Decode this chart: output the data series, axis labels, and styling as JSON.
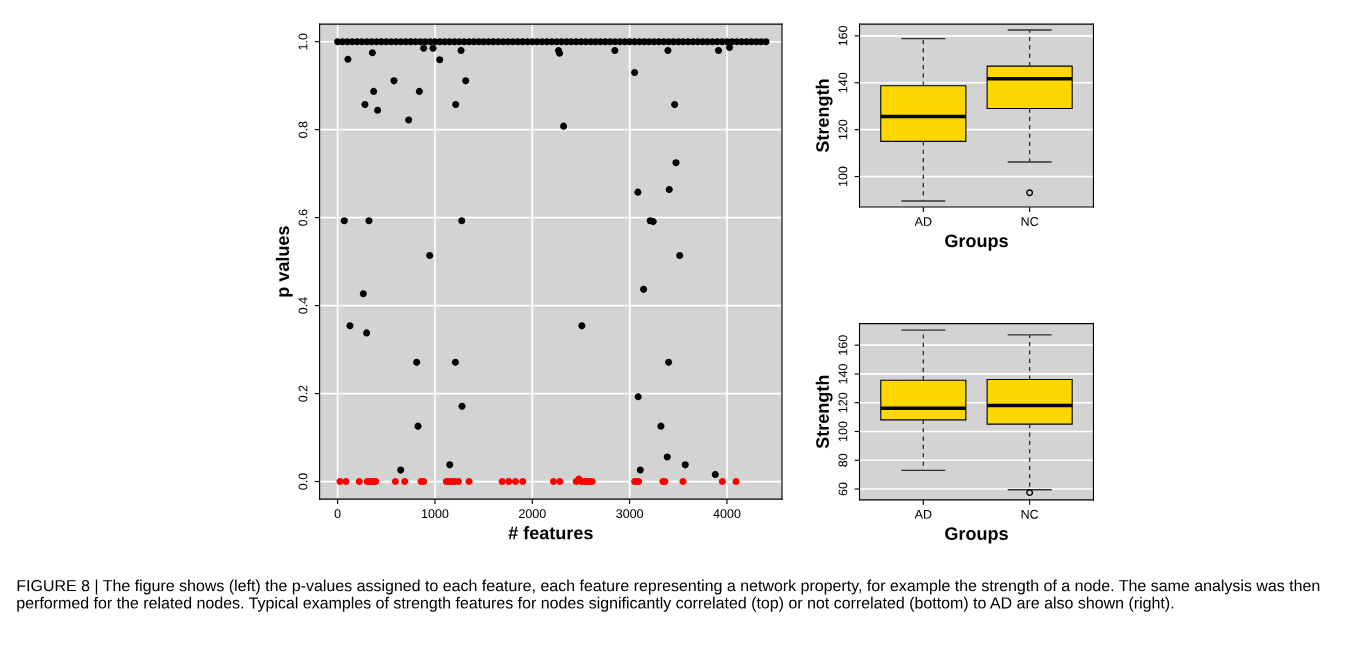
{
  "chart_data": [
    {
      "type": "scatter",
      "xlabel": "# features",
      "ylabel": "p values",
      "xlim": [
        -185,
        4565
      ],
      "ylim": [
        -0.04,
        1.04
      ],
      "xticks": [
        0,
        1000,
        2000,
        3000,
        4000
      ],
      "yticks": [
        {
          "value": 0,
          "label": "0.0"
        },
        {
          "value": 0.2,
          "label": "0.2"
        },
        {
          "value": 0.4,
          "label": "0.4"
        },
        {
          "value": 0.6,
          "label": "0.6"
        },
        {
          "value": 0.8,
          "label": "0.8"
        },
        {
          "value": 1,
          "label": "1.0"
        }
      ],
      "grid": true,
      "legend": false,
      "marker": "circle",
      "annotations": [
        "FIGURE 8 | The figure shows (left) the p-values assigned to each feature, each feature representing a network property, for example the strength of a node. The same analysis was then performed for the related nodes. Typical examples of strength features for nodes significantly correlated (top) or not correlated (bottom) to AD are also shown (right)."
      ],
      "series": [
        {
          "color": "#000000",
          "x": [
            0,
            50,
            100,
            150,
            200,
            250,
            300,
            350,
            400,
            450,
            500,
            550,
            600,
            650,
            700,
            750,
            800,
            850,
            900,
            950,
            1000,
            1050,
            1100,
            1150,
            1200,
            1250,
            1300,
            1350,
            1400,
            1450,
            1500,
            1550,
            1600,
            1650,
            1700,
            1750,
            1800,
            1850,
            1900,
            1950,
            2000,
            2050,
            2100,
            2150,
            2200,
            2250,
            2300,
            2350,
            2400,
            2450,
            2500,
            2550,
            2600,
            2650,
            2700,
            2750,
            2800,
            2850,
            2900,
            2950,
            3000,
            3050,
            3100,
            3150,
            3200,
            3250,
            3300,
            3350,
            3400,
            3450,
            3500,
            3550,
            3600,
            3650,
            3700,
            3750,
            3800,
            3850,
            3900,
            3950,
            4000,
            4050,
            4100,
            4150,
            4200,
            4250,
            4300,
            4350,
            4400
          ],
          "values": [
            1,
            1,
            1,
            1,
            1,
            1,
            1,
            1,
            1,
            1,
            1,
            1,
            1,
            1,
            1,
            1,
            1,
            1,
            1,
            1,
            1,
            1,
            1,
            1,
            1,
            1,
            1,
            1,
            1,
            1,
            1,
            1,
            1,
            1,
            1,
            1,
            1,
            1,
            1,
            1,
            1,
            1,
            1,
            1,
            1,
            1,
            1,
            1,
            1,
            1,
            1,
            1,
            1,
            1,
            1,
            1,
            1,
            1,
            1,
            1,
            1,
            1,
            1,
            1,
            1,
            1,
            1,
            1,
            1,
            1,
            1,
            1,
            1,
            1,
            1,
            1,
            1,
            1,
            1,
            1,
            1,
            1,
            1,
            1,
            1,
            1,
            1,
            1,
            1
          ]
        },
        {
          "color": "#000000",
          "x": [
            106,
            69,
            357,
            322,
            281,
            370,
            411,
            579,
            730,
            840,
            884,
            980,
            946,
            1049,
            1213,
            1268,
            1275,
            1316,
            2269,
            2280,
            2321,
            2848,
            3051,
            3085,
            3211,
            3242,
            3393,
            3407,
            3462,
            3476,
            3514,
            3913,
            4026,
            127,
            264,
            298,
            648,
            812,
            826,
            1152,
            1210,
            1278,
            2509,
            3088,
            3109,
            3143,
            3321,
            3386,
            3400,
            3571,
            3880
          ],
          "values": [
            0.96,
            0.593,
            0.975,
            0.593,
            0.857,
            0.887,
            0.844,
            0.911,
            0.822,
            0.887,
            0.985,
            0.985,
            0.514,
            0.959,
            0.857,
            0.98,
            0.593,
            0.911,
            0.98,
            0.974,
            0.808,
            0.98,
            0.93,
            0.658,
            0.593,
            0.591,
            0.98,
            0.664,
            0.857,
            0.725,
            0.514,
            0.98,
            0.987,
            0.354,
            0.427,
            0.338,
            0.026,
            0.271,
            0.126,
            0.038,
            0.271,
            0.171,
            0.354,
            0.193,
            0.026,
            0.437,
            0.126,
            0.056,
            0.271,
            0.038,
            0.016
          ]
        },
        {
          "color": "#ff0000",
          "x": [
            24,
            86,
            223,
            305,
            336,
            363,
            391,
            593,
            689,
            857,
            884,
            1117,
            1145,
            1172,
            1200,
            1241,
            1350,
            1690,
            1758,
            1827,
            1902,
            2218,
            2283,
            2451,
            2478,
            2506,
            2533,
            2560,
            2588,
            2615,
            3051,
            3072,
            3092,
            3342,
            3362,
            3548,
            3952,
            4093
          ],
          "values": [
            0,
            0,
            0,
            0,
            0,
            0,
            0,
            0,
            0,
            0,
            0,
            0,
            0,
            0,
            0,
            0,
            0,
            0,
            0,
            0,
            0,
            0,
            0,
            0,
            0.006,
            0,
            0,
            0,
            0,
            0,
            0,
            0,
            0,
            0,
            0,
            0,
            0,
            0
          ]
        }
      ]
    },
    {
      "type": "box",
      "xlabel": "Groups",
      "ylabel": "Strength",
      "categories": [
        "AD",
        "NC"
      ],
      "ylim": [
        87,
        165
      ],
      "yticks": [
        100,
        120,
        140,
        160
      ],
      "grid": "y",
      "legend": false,
      "series": [
        {
          "color": "#ffd700",
          "boxes": [
            {
              "low": 89.6,
              "q1": 115.0,
              "median": 125.6,
              "q3": 138.7,
              "high": 158.8
            },
            {
              "low": 106.2,
              "q1": 129.0,
              "median": 141.7,
              "q3": 147.1,
              "high": 162.5,
              "outliers": [
                93.1
              ]
            }
          ]
        }
      ]
    },
    {
      "type": "box",
      "xlabel": "Groups",
      "ylabel": "Strength",
      "categories": [
        "AD",
        "NC"
      ],
      "ylim": [
        52.5,
        175
      ],
      "yticks": [
        60,
        80,
        100,
        120,
        140,
        160
      ],
      "grid": "y",
      "legend": false,
      "series": [
        {
          "color": "#ffd700",
          "boxes": [
            {
              "low": 73.0,
              "q1": 108.1,
              "median": 116.1,
              "q3": 135.6,
              "high": 170.5
            },
            {
              "low": 59.5,
              "q1": 105.1,
              "median": 118.1,
              "q3": 136.1,
              "high": 167.2,
              "outliers": [
                57.5
              ]
            }
          ]
        }
      ]
    }
  ]
}
